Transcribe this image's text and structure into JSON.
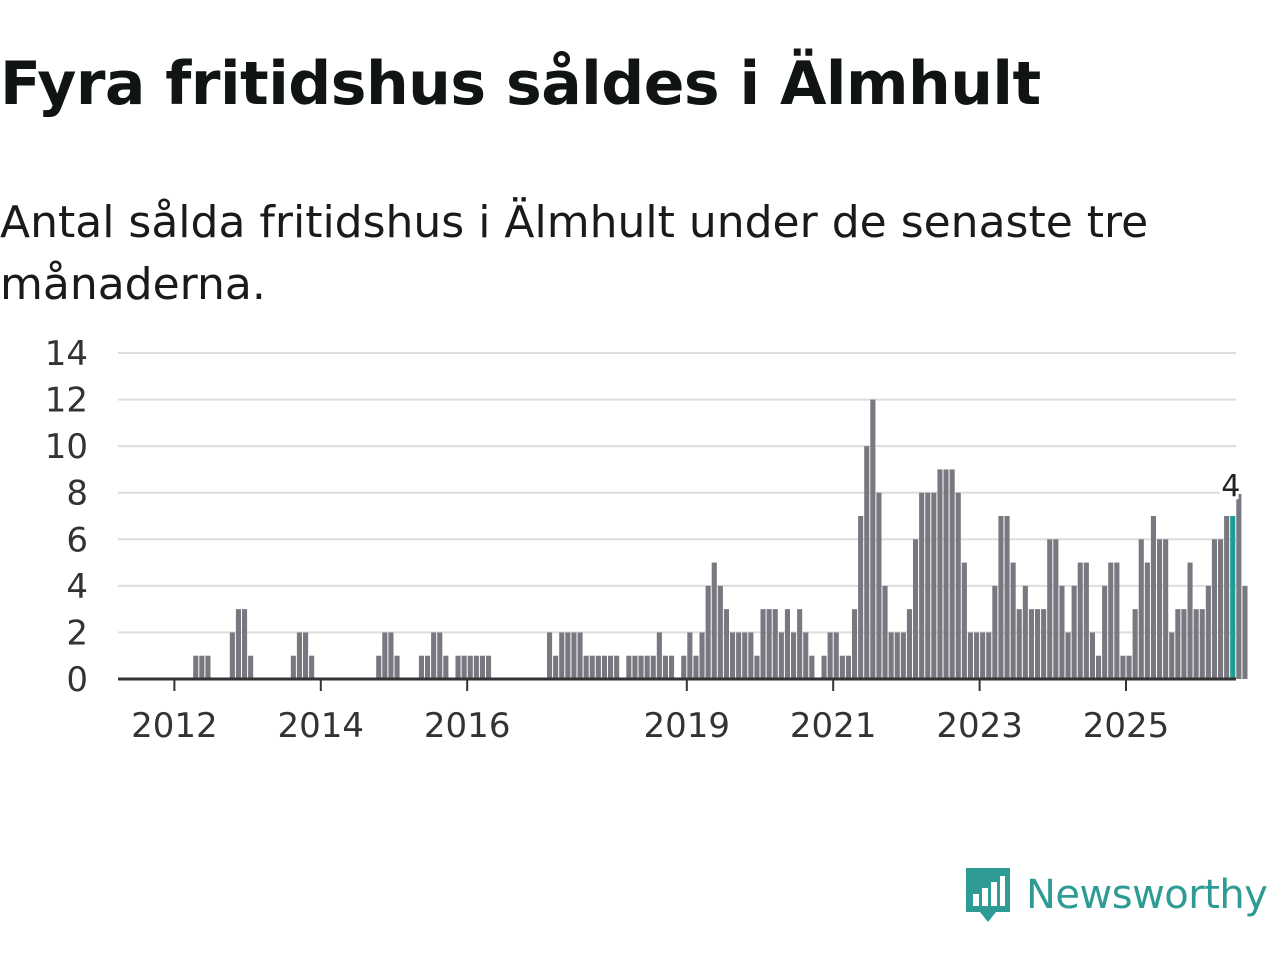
{
  "title": "Fyra fritidshus såldes i Älmhult",
  "subtitle": "Antal sålda fritidshus i Älmhult under de senaste tre månaderna.",
  "brand": {
    "name": "Newsworthy",
    "icon": "bar-chart-speech-bubble-icon",
    "color": "#2e9c94"
  },
  "colors": {
    "bar": "#787880",
    "highlight": "#1b9e93",
    "grid": "#dddddd",
    "axis": "#333333"
  },
  "chart_data": {
    "type": "bar",
    "x_start": "2011-04",
    "interval": "month",
    "x_ticks": [
      "2012",
      "2014",
      "2016",
      "2019",
      "2021",
      "2023",
      "2025"
    ],
    "y_ticks": [
      "0",
      "2",
      "4",
      "6",
      "8",
      "10",
      "12",
      "14"
    ],
    "ylim": [
      0,
      14
    ],
    "grid": true,
    "values": [
      0,
      0,
      0,
      0,
      0,
      0,
      0,
      0,
      0,
      0,
      0,
      0,
      1,
      1,
      1,
      0,
      0,
      0,
      2,
      3,
      3,
      1,
      0,
      0,
      0,
      0,
      0,
      0,
      1,
      2,
      2,
      1,
      0,
      0,
      0,
      0,
      0,
      0,
      0,
      0,
      0,
      0,
      1,
      2,
      2,
      1,
      0,
      0,
      0,
      1,
      1,
      2,
      2,
      1,
      0,
      1,
      1,
      1,
      1,
      1,
      1,
      0,
      0,
      0,
      0,
      0,
      0,
      0,
      0,
      0,
      2,
      1,
      2,
      2,
      2,
      2,
      1,
      1,
      1,
      1,
      1,
      1,
      0,
      1,
      1,
      1,
      1,
      1,
      2,
      1,
      1,
      0,
      1,
      2,
      1,
      2,
      4,
      5,
      4,
      3,
      2,
      2,
      2,
      2,
      1,
      3,
      3,
      3,
      2,
      3,
      2,
      3,
      2,
      1,
      0,
      1,
      2,
      2,
      1,
      1,
      3,
      7,
      10,
      12,
      8,
      4,
      2,
      2,
      2,
      3,
      6,
      8,
      8,
      8,
      9,
      9,
      9,
      8,
      5,
      2,
      2,
      2,
      2,
      4,
      7,
      7,
      5,
      3,
      4,
      3,
      3,
      3,
      6,
      6,
      4,
      2,
      4,
      5,
      5,
      2,
      1,
      4,
      5,
      5,
      1,
      1,
      3,
      6,
      5,
      7,
      6,
      6,
      2,
      3,
      3,
      5,
      3,
      3,
      4,
      6,
      6,
      7,
      7,
      8,
      4
    ],
    "highlight_index": 182,
    "highlight_label": "4"
  }
}
